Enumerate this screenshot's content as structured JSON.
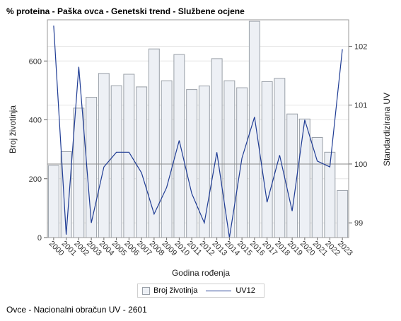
{
  "title": "% proteina - Paška ovca - Genetski trend - Službene ocjene",
  "footnote": "Ovce - Nacionalni obračun UV - 2601",
  "colors": {
    "bar_fill": "#edf0f5",
    "bar_stroke": "#9aa0a8",
    "line": "#1f3c94",
    "reference_line": "#8a8a8a",
    "grid": "#e6e6e6"
  },
  "chart_data": {
    "type": "bar",
    "title": "% proteina - Paška ovca - Genetski trend - Službene ocjene",
    "xlabel": "Godina rođenja",
    "ylabel": "Broj životinja",
    "y2label": "Standardizirana UV",
    "categories": [
      "2000",
      "2001",
      "2002",
      "2003",
      "2004",
      "2005",
      "2006",
      "2007",
      "2008",
      "2009",
      "2010",
      "2011",
      "2012",
      "2013",
      "2014",
      "2015",
      "2016",
      "2017",
      "2018",
      "2019",
      "2020",
      "2021",
      "2022",
      "2023"
    ],
    "series": [
      {
        "name": "Broj životinja",
        "type": "bar",
        "axis": "left",
        "values": [
          245,
          292,
          440,
          477,
          558,
          516,
          555,
          512,
          641,
          533,
          622,
          503,
          515,
          608,
          533,
          509,
          735,
          530,
          541,
          420,
          403,
          340,
          290,
          160
        ]
      },
      {
        "name": "UV12",
        "type": "line",
        "axis": "right",
        "values": [
          102.35,
          98.8,
          101.65,
          99.0,
          99.95,
          100.2,
          100.2,
          99.85,
          99.15,
          99.6,
          100.4,
          99.5,
          99.0,
          100.2,
          98.75,
          100.1,
          100.8,
          99.35,
          100.15,
          99.2,
          100.75,
          100.05,
          99.95,
          101.95
        ]
      }
    ],
    "ylim": [
      0,
      740
    ],
    "yticks": [
      0,
      200,
      400,
      600
    ],
    "y2lim": [
      98.75,
      102.45
    ],
    "y2ticks": [
      99,
      100,
      101,
      102
    ],
    "reference_line_y2": 100,
    "grid": true,
    "legend_position": "bottom"
  }
}
